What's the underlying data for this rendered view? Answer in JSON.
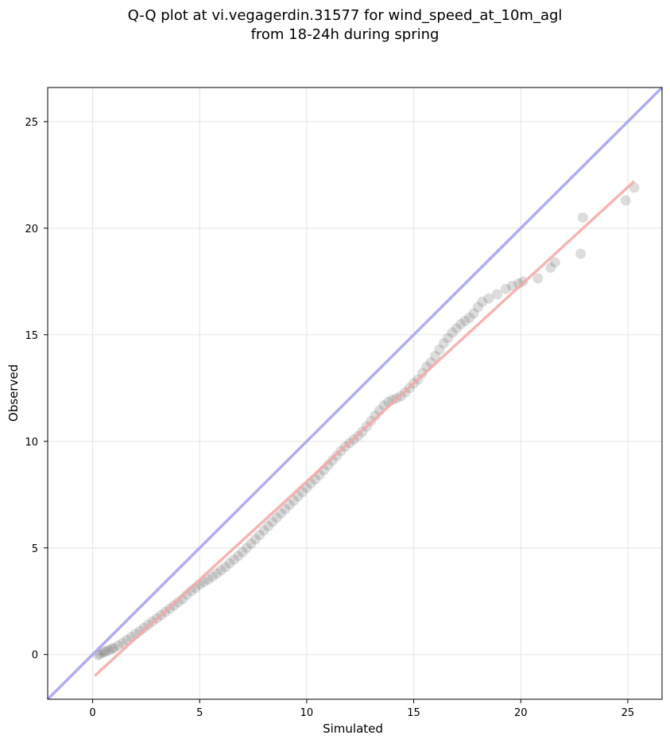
{
  "chart_data": {
    "type": "scatter",
    "title_lines": [
      "Q-Q plot at vi.vegagerdin.31577 for wind_speed_at_10m_agl",
      "from 18-24h during spring"
    ],
    "xlabel": "Simulated",
    "ylabel": "Observed",
    "xlim": [
      -2.1,
      26.6
    ],
    "ylim": [
      -2.1,
      26.6
    ],
    "xticks": [
      0,
      5,
      10,
      15,
      20,
      25
    ],
    "yticks": [
      0,
      5,
      10,
      15,
      20,
      25
    ],
    "grid": true,
    "reference_line": {
      "color": "#aaaaf0",
      "from": [
        -2.1,
        -2.1
      ],
      "to": [
        26.6,
        26.6
      ]
    },
    "fit_line": {
      "color": "#f5a8a8",
      "from": [
        0.1,
        -1.0
      ],
      "to": [
        25.3,
        22.2
      ]
    },
    "point_color": "#444444",
    "series": [
      {
        "values": [
          [
            0.25,
            -0.02
          ],
          [
            0.35,
            0.02
          ],
          [
            0.5,
            0.1
          ],
          [
            0.6,
            0.14
          ],
          [
            0.75,
            0.2
          ],
          [
            0.9,
            0.27
          ],
          [
            1.0,
            0.3
          ],
          [
            1.2,
            0.42
          ],
          [
            1.4,
            0.54
          ],
          [
            1.6,
            0.68
          ],
          [
            1.8,
            0.82
          ],
          [
            2.0,
            0.96
          ],
          [
            2.2,
            1.1
          ],
          [
            2.4,
            1.25
          ],
          [
            2.6,
            1.4
          ],
          [
            2.8,
            1.55
          ],
          [
            3.0,
            1.7
          ],
          [
            3.2,
            1.85
          ],
          [
            3.4,
            2.0
          ],
          [
            3.6,
            2.15
          ],
          [
            3.8,
            2.3
          ],
          [
            4.0,
            2.45
          ],
          [
            4.2,
            2.6
          ],
          [
            4.4,
            2.8
          ],
          [
            4.6,
            2.98
          ],
          [
            4.8,
            3.12
          ],
          [
            5.0,
            3.28
          ],
          [
            5.2,
            3.4
          ],
          [
            5.4,
            3.52
          ],
          [
            5.6,
            3.65
          ],
          [
            5.8,
            3.8
          ],
          [
            6.0,
            3.95
          ],
          [
            6.2,
            4.1
          ],
          [
            6.4,
            4.28
          ],
          [
            6.6,
            4.45
          ],
          [
            6.8,
            4.62
          ],
          [
            7.0,
            4.8
          ],
          [
            7.2,
            5.0
          ],
          [
            7.4,
            5.2
          ],
          [
            7.6,
            5.4
          ],
          [
            7.8,
            5.6
          ],
          [
            8.0,
            5.82
          ],
          [
            8.2,
            6.02
          ],
          [
            8.4,
            6.22
          ],
          [
            8.6,
            6.42
          ],
          [
            8.8,
            6.62
          ],
          [
            9.0,
            6.82
          ],
          [
            9.2,
            7.02
          ],
          [
            9.4,
            7.22
          ],
          [
            9.6,
            7.42
          ],
          [
            9.8,
            7.62
          ],
          [
            10.0,
            7.82
          ],
          [
            10.2,
            8.02
          ],
          [
            10.4,
            8.22
          ],
          [
            10.6,
            8.42
          ],
          [
            10.8,
            8.65
          ],
          [
            11.0,
            8.88
          ],
          [
            11.2,
            9.1
          ],
          [
            11.4,
            9.32
          ],
          [
            11.6,
            9.55
          ],
          [
            11.8,
            9.75
          ],
          [
            12.0,
            9.92
          ],
          [
            12.2,
            10.08
          ],
          [
            12.4,
            10.25
          ],
          [
            12.6,
            10.45
          ],
          [
            12.8,
            10.7
          ],
          [
            13.0,
            10.95
          ],
          [
            13.2,
            11.2
          ],
          [
            13.4,
            11.45
          ],
          [
            13.6,
            11.68
          ],
          [
            13.8,
            11.85
          ],
          [
            14.0,
            11.95
          ],
          [
            14.2,
            12.02
          ],
          [
            14.4,
            12.12
          ],
          [
            14.6,
            12.3
          ],
          [
            14.8,
            12.5
          ],
          [
            15.0,
            12.72
          ],
          [
            15.2,
            12.9
          ],
          [
            15.4,
            13.2
          ],
          [
            15.6,
            13.5
          ],
          [
            15.8,
            13.7
          ],
          [
            16.0,
            14.0
          ],
          [
            16.2,
            14.3
          ],
          [
            16.4,
            14.6
          ],
          [
            16.6,
            14.85
          ],
          [
            16.8,
            15.1
          ],
          [
            17.0,
            15.3
          ],
          [
            17.2,
            15.5
          ],
          [
            17.4,
            15.65
          ],
          [
            17.6,
            15.8
          ],
          [
            17.8,
            16.0
          ],
          [
            18.0,
            16.3
          ],
          [
            18.2,
            16.55
          ],
          [
            18.5,
            16.7
          ],
          [
            18.9,
            16.9
          ],
          [
            19.3,
            17.15
          ],
          [
            19.6,
            17.3
          ],
          [
            19.9,
            17.4
          ],
          [
            20.1,
            17.5
          ],
          [
            20.8,
            17.65
          ],
          [
            21.4,
            18.15
          ],
          [
            21.6,
            18.4
          ],
          [
            22.8,
            18.8
          ],
          [
            22.9,
            20.5
          ],
          [
            24.9,
            21.3
          ],
          [
            25.3,
            21.9
          ]
        ]
      }
    ]
  }
}
